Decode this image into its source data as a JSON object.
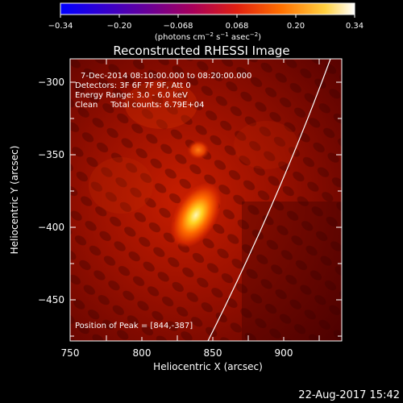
{
  "colorbar": {
    "ticks": [
      "−0.34",
      "−0.20",
      "−0.068",
      "0.068",
      "0.20",
      "0.34"
    ],
    "units_text": "(photons cm",
    "units_exp1": "−2",
    "units_mid": " s",
    "units_exp2": "−1",
    "units_mid2": " asec",
    "units_exp3": "−2",
    "units_close": ")"
  },
  "title": "Reconstructed RHESSI Image",
  "annotations": {
    "time_range": "7-Dec-2014 08:10:00.000 to 08:20:00.000",
    "detectors": "Detectors: 3F 6F 7F 9F, Att 0",
    "energy_range": "Energy Range: 3.0 - 6.0 keV",
    "method_counts": "Clean     Total counts: 6.79E+04",
    "peak": "Position of Peak = [844,-387]"
  },
  "axes": {
    "xlabel": "Heliocentric X (arcsec)",
    "ylabel": "Heliocentric Y (arcsec)",
    "xticks": [
      "750",
      "800",
      "850",
      "900"
    ],
    "yticks": [
      "−300",
      "−350",
      "−400",
      "−450"
    ]
  },
  "footer_date": "22-Aug-2017 15:42"
}
